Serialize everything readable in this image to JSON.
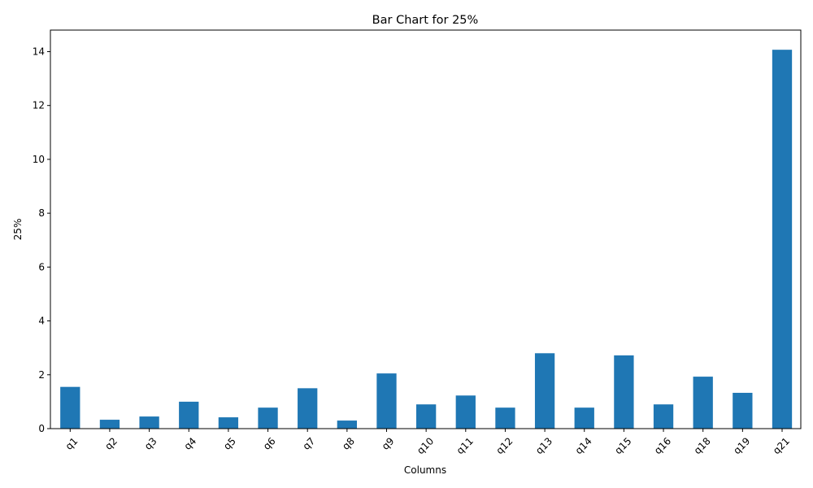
{
  "chart_data": {
    "type": "bar",
    "title": "Bar Chart for 25%",
    "xlabel": "Columns",
    "ylabel": "25%",
    "categories": [
      "q1",
      "q2",
      "q3",
      "q4",
      "q5",
      "q6",
      "q7",
      "q8",
      "q9",
      "q10",
      "q11",
      "q12",
      "q13",
      "q14",
      "q15",
      "q16",
      "q18",
      "q19",
      "q21"
    ],
    "values": [
      1.55,
      0.33,
      0.45,
      1.0,
      0.42,
      0.78,
      1.5,
      0.3,
      2.05,
      0.9,
      1.23,
      0.78,
      2.8,
      0.78,
      2.72,
      0.9,
      1.93,
      1.33,
      14.07
    ],
    "ylim": [
      0,
      14.8
    ],
    "yticks": [
      0,
      2,
      4,
      6,
      8,
      10,
      12,
      14
    ],
    "ytick_labels": [
      "0",
      "2",
      "4",
      "6",
      "8",
      "10",
      "12",
      "14"
    ],
    "bar_color": "#1f77b4",
    "grid": false,
    "legend": false
  }
}
